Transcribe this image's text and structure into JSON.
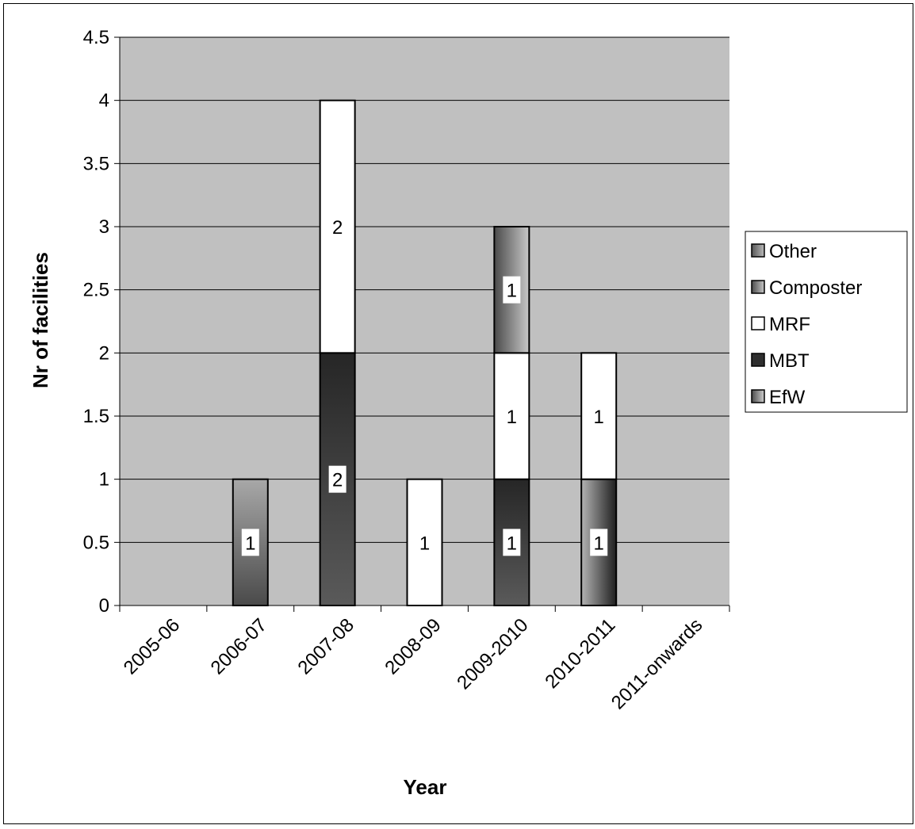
{
  "chart_data": {
    "type": "bar",
    "stacked": true,
    "title": "",
    "xlabel": "Year",
    "ylabel": "Nr of facilities",
    "ylim": [
      0,
      4.5
    ],
    "y_ticks": [
      "0",
      "0.5",
      "1",
      "1.5",
      "2",
      "2.5",
      "3",
      "3.5",
      "4",
      "4.5"
    ],
    "categories": [
      "2005-06",
      "2006-07",
      "2007-08",
      "2008-09",
      "2009-2010",
      "2010-2011",
      "2011-onwards"
    ],
    "series": [
      {
        "name": "EfW",
        "values": [
          0,
          1,
          0,
          0,
          0,
          1,
          0
        ],
        "labels": [
          "",
          "1",
          "",
          "",
          "",
          "1",
          ""
        ]
      },
      {
        "name": "MBT",
        "values": [
          0,
          0,
          2,
          0,
          1,
          0,
          0
        ],
        "labels": [
          "",
          "",
          "2",
          "",
          "1",
          "",
          ""
        ]
      },
      {
        "name": "MRF",
        "values": [
          0,
          0,
          2,
          1,
          1,
          1,
          0
        ],
        "labels": [
          "",
          "",
          "2",
          "1",
          "1",
          "1",
          ""
        ]
      },
      {
        "name": "Composter",
        "values": [
          0,
          0,
          0,
          0,
          1,
          0,
          0
        ],
        "labels": [
          "",
          "",
          "",
          "",
          "1",
          "",
          ""
        ]
      },
      {
        "name": "Other",
        "values": [
          0,
          0,
          0,
          0,
          0,
          0,
          0
        ],
        "labels": [
          "",
          "",
          "",
          "",
          "",
          "",
          ""
        ]
      }
    ],
    "legend_order": [
      "Other",
      "Composter",
      "MRF",
      "MBT",
      "EfW"
    ],
    "legend_position": "right",
    "grid": true,
    "colors": {
      "plot_background": "#c0c0c0",
      "EfW": "#5a5a5a",
      "MBT": "#2e2e2e",
      "MRF": "#ffffff",
      "Composter": "#6e6e6e",
      "Other": "#8a8a8a"
    }
  }
}
